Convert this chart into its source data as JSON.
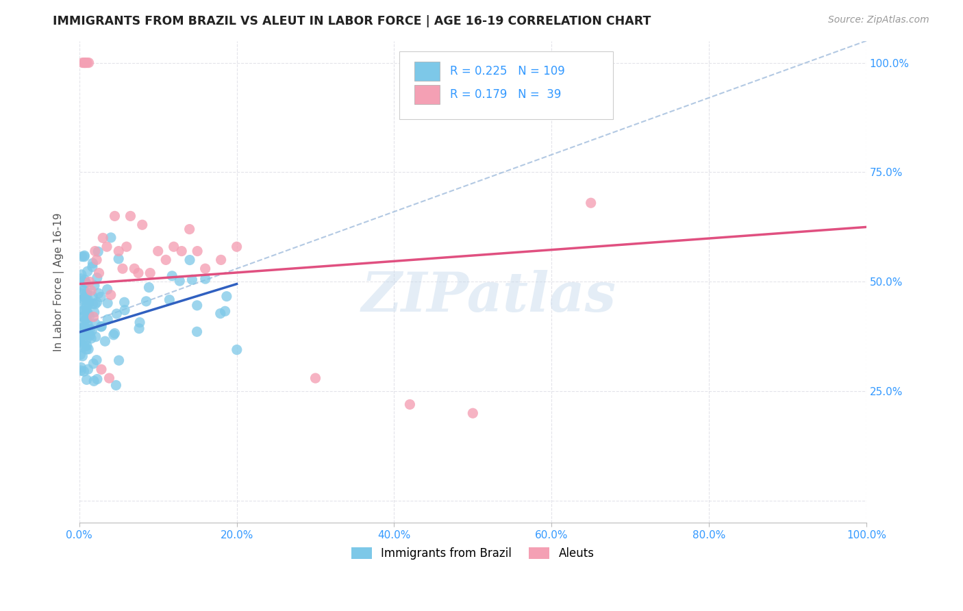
{
  "title": "IMMIGRANTS FROM BRAZIL VS ALEUT IN LABOR FORCE | AGE 16-19 CORRELATION CHART",
  "source": "Source: ZipAtlas.com",
  "ylabel": "In Labor Force | Age 16-19",
  "xlim": [
    0.0,
    1.0
  ],
  "ylim": [
    -0.05,
    1.05
  ],
  "xticks": [
    0.0,
    0.2,
    0.4,
    0.6,
    0.8,
    1.0
  ],
  "yticks": [
    0.0,
    0.25,
    0.5,
    0.75,
    1.0
  ],
  "xtick_labels": [
    "0.0%",
    "20.0%",
    "40.0%",
    "60.0%",
    "80.0%",
    "100.0%"
  ],
  "ytick_labels_right": [
    "",
    "25.0%",
    "50.0%",
    "75.0%",
    "100.0%"
  ],
  "brazil_R": 0.225,
  "brazil_N": 109,
  "aleut_R": 0.179,
  "aleut_N": 39,
  "brazil_color": "#7DC8E8",
  "aleut_color": "#F4A0B4",
  "brazil_line_color": "#3060C0",
  "aleut_line_color": "#E05080",
  "background_color": "#FFFFFF",
  "grid_color": "#E0E0E8",
  "watermark": "ZIPatlas",
  "legend_brazil_label": "Immigrants from Brazil",
  "legend_aleut_label": "Aleuts"
}
